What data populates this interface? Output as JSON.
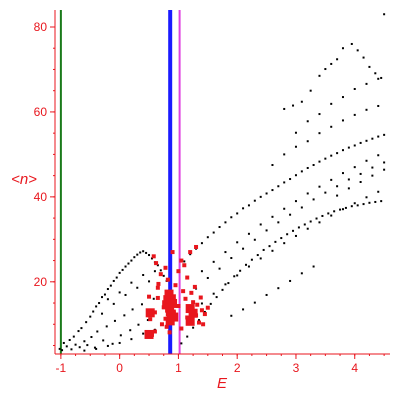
{
  "chart_data": {
    "type": "scatter",
    "title": "",
    "xlabel": "E",
    "ylabel": "<n>",
    "xlim": [
      -1.1,
      4.6
    ],
    "ylim": [
      3,
      84
    ],
    "xticks": [
      -1,
      0,
      1,
      2,
      3,
      4
    ],
    "xtick_labels": [
      "-1",
      "0",
      "1",
      "2",
      "3",
      "4"
    ],
    "yticks": [
      20,
      40,
      60,
      80
    ],
    "ytick_labels": [
      "20",
      "40",
      "60",
      "80"
    ],
    "grid": false,
    "axis_color": "#e8161d",
    "vertical_lines": [
      {
        "x": -1.0,
        "color": "#1a7a1a"
      },
      {
        "x": 0.86,
        "color": "#1a1aff"
      },
      {
        "x": 1.02,
        "color": "#e040e0"
      }
    ],
    "series": [
      {
        "color": "#000000",
        "marker_size": 1,
        "points": [
          [
            -1.02,
            4.2
          ],
          [
            -0.98,
            3.9
          ],
          [
            -0.95,
            5.6
          ],
          [
            -0.9,
            4.8
          ],
          [
            -0.85,
            6.3
          ],
          [
            -0.82,
            4.1
          ],
          [
            -0.78,
            7.1
          ],
          [
            -0.75,
            5.2
          ],
          [
            -0.7,
            8.4
          ],
          [
            -0.68,
            4.6
          ],
          [
            -0.65,
            9.1
          ],
          [
            -0.6,
            6.0
          ],
          [
            -0.57,
            10.5
          ],
          [
            -0.55,
            5.1
          ],
          [
            -0.5,
            11.8
          ],
          [
            -0.48,
            7.0
          ],
          [
            -0.45,
            13.0
          ],
          [
            -0.42,
            4.5
          ],
          [
            -0.4,
            14.2
          ],
          [
            -0.38,
            8.3
          ],
          [
            -0.35,
            15.0
          ],
          [
            -0.3,
            16.4
          ],
          [
            -0.28,
            6.2
          ],
          [
            -0.25,
            17.0
          ],
          [
            -0.22,
            9.5
          ],
          [
            -0.2,
            18.3
          ],
          [
            -0.15,
            19.1
          ],
          [
            -0.12,
            5.4
          ],
          [
            -0.1,
            20.2
          ],
          [
            -0.08,
            10.8
          ],
          [
            -0.05,
            21.0
          ],
          [
            0.0,
            22.1
          ],
          [
            0.02,
            7.4
          ],
          [
            0.05,
            22.8
          ],
          [
            0.08,
            12.1
          ],
          [
            0.1,
            23.6
          ],
          [
            0.15,
            24.3
          ],
          [
            0.18,
            8.6
          ],
          [
            0.2,
            25.0
          ],
          [
            0.22,
            13.5
          ],
          [
            0.25,
            25.8
          ],
          [
            0.3,
            26.4
          ],
          [
            0.32,
            9.9
          ],
          [
            0.35,
            26.9
          ],
          [
            0.38,
            14.7
          ],
          [
            0.4,
            27.2
          ],
          [
            0.45,
            26.8
          ],
          [
            0.48,
            11.0
          ],
          [
            0.5,
            26.3
          ],
          [
            0.55,
            25.5
          ],
          [
            0.58,
            16.0
          ],
          [
            0.6,
            24.6
          ],
          [
            0.65,
            23.9
          ],
          [
            0.7,
            22.7
          ],
          [
            0.75,
            21.4
          ],
          [
            0.8,
            20.2
          ],
          [
            -0.6,
            3.8
          ],
          [
            -0.4,
            4.2
          ],
          [
            -0.2,
            4.9
          ],
          [
            0.0,
            5.6
          ],
          [
            0.2,
            6.5
          ],
          [
            0.4,
            7.8
          ],
          [
            0.6,
            8.7
          ],
          [
            0.8,
            9.6
          ],
          [
            -0.3,
            12.5
          ],
          [
            -0.1,
            14.8
          ],
          [
            0.1,
            16.9
          ],
          [
            0.3,
            18.6
          ],
          [
            0.5,
            20.1
          ],
          [
            0.0,
            17.5
          ],
          [
            0.2,
            19.8
          ],
          [
            0.4,
            21.6
          ],
          [
            -0.2,
            15.9
          ],
          [
            0.6,
            22.5
          ],
          [
            1.05,
            5.5
          ],
          [
            1.1,
            24.8
          ],
          [
            1.15,
            7.1
          ],
          [
            1.2,
            26.5
          ],
          [
            1.25,
            9.2
          ],
          [
            1.3,
            27.8
          ],
          [
            1.35,
            11.0
          ],
          [
            1.4,
            29.1
          ],
          [
            1.45,
            12.9
          ],
          [
            1.5,
            30.5
          ],
          [
            1.55,
            14.8
          ],
          [
            1.6,
            31.6
          ],
          [
            1.65,
            16.4
          ],
          [
            1.7,
            32.9
          ],
          [
            1.75,
            18.1
          ],
          [
            1.8,
            34.0
          ],
          [
            1.85,
            19.7
          ],
          [
            1.9,
            35.2
          ],
          [
            1.95,
            21.3
          ],
          [
            2.0,
            36.1
          ],
          [
            2.05,
            22.6
          ],
          [
            2.1,
            37.3
          ],
          [
            2.15,
            24.0
          ],
          [
            2.2,
            38.0
          ],
          [
            2.25,
            25.2
          ],
          [
            2.3,
            39.1
          ],
          [
            2.35,
            26.3
          ],
          [
            2.4,
            40.0
          ],
          [
            2.45,
            27.5
          ],
          [
            2.5,
            40.8
          ],
          [
            2.55,
            28.4
          ],
          [
            2.6,
            41.6
          ],
          [
            2.65,
            29.4
          ],
          [
            2.7,
            42.5
          ],
          [
            2.75,
            30.3
          ],
          [
            2.8,
            43.4
          ],
          [
            2.85,
            31.2
          ],
          [
            2.9,
            44.2
          ],
          [
            2.95,
            32.0
          ],
          [
            3.0,
            45.1
          ],
          [
            3.05,
            32.8
          ],
          [
            3.1,
            46.0
          ],
          [
            3.15,
            33.5
          ],
          [
            3.2,
            46.8
          ],
          [
            3.25,
            34.2
          ],
          [
            3.3,
            47.5
          ],
          [
            3.35,
            34.9
          ],
          [
            3.4,
            48.3
          ],
          [
            3.45,
            35.5
          ],
          [
            3.5,
            49.0
          ],
          [
            3.55,
            36.1
          ],
          [
            3.6,
            49.7
          ],
          [
            3.65,
            36.6
          ],
          [
            3.7,
            50.3
          ],
          [
            3.75,
            37.0
          ],
          [
            3.8,
            51.0
          ],
          [
            3.85,
            37.4
          ],
          [
            3.9,
            51.6
          ],
          [
            3.95,
            37.8
          ],
          [
            4.0,
            52.1
          ],
          [
            4.05,
            38.0
          ],
          [
            4.1,
            52.7
          ],
          [
            4.15,
            38.3
          ],
          [
            4.2,
            53.2
          ],
          [
            4.25,
            38.6
          ],
          [
            4.3,
            53.7
          ],
          [
            4.35,
            38.8
          ],
          [
            4.4,
            54.2
          ],
          [
            4.45,
            39.0
          ],
          [
            4.5,
            54.6
          ],
          [
            1.3,
            18.4
          ],
          [
            1.5,
            20.9
          ],
          [
            1.7,
            23.1
          ],
          [
            1.9,
            25.6
          ],
          [
            2.1,
            27.8
          ],
          [
            2.3,
            29.9
          ],
          [
            2.5,
            32.1
          ],
          [
            2.7,
            34.0
          ],
          [
            2.9,
            35.8
          ],
          [
            3.1,
            37.5
          ],
          [
            3.3,
            39.4
          ],
          [
            3.5,
            41.0
          ],
          [
            3.7,
            42.5
          ],
          [
            3.9,
            44.1
          ],
          [
            4.1,
            45.4
          ],
          [
            4.3,
            46.9
          ],
          [
            4.5,
            48.1
          ],
          [
            1.4,
            22.5
          ],
          [
            1.6,
            24.7
          ],
          [
            1.8,
            27.0
          ],
          [
            2.0,
            29.3
          ],
          [
            2.2,
            31.3
          ],
          [
            2.4,
            33.5
          ],
          [
            2.6,
            35.3
          ],
          [
            2.8,
            37.2
          ],
          [
            3.0,
            39.0
          ],
          [
            3.2,
            40.8
          ],
          [
            3.4,
            42.4
          ],
          [
            3.6,
            44.0
          ],
          [
            3.8,
            45.6
          ],
          [
            4.0,
            47.0
          ],
          [
            4.2,
            48.5
          ],
          [
            4.4,
            49.8
          ],
          [
            1.2,
            12.5
          ],
          [
            1.4,
            14.9
          ],
          [
            1.6,
            17.2
          ],
          [
            1.8,
            19.4
          ],
          [
            2.0,
            21.5
          ],
          [
            2.2,
            23.6
          ],
          [
            2.4,
            25.5
          ],
          [
            2.6,
            27.3
          ],
          [
            2.8,
            29.1
          ],
          [
            3.0,
            30.8
          ],
          [
            3.2,
            32.5
          ],
          [
            3.4,
            34.0
          ],
          [
            3.6,
            35.6
          ],
          [
            3.8,
            37.1
          ],
          [
            4.0,
            38.5
          ],
          [
            4.2,
            39.9
          ],
          [
            4.4,
            41.2
          ],
          [
            1.9,
            12.0
          ],
          [
            2.1,
            13.5
          ],
          [
            2.3,
            15.1
          ],
          [
            2.5,
            16.9
          ],
          [
            2.7,
            18.5
          ],
          [
            2.9,
            20.2
          ],
          [
            3.1,
            22.0
          ],
          [
            3.3,
            23.6
          ],
          [
            2.8,
            60.7
          ],
          [
            2.95,
            61.5
          ],
          [
            3.1,
            62.4
          ],
          [
            3.25,
            65.0
          ],
          [
            3.4,
            68.5
          ],
          [
            3.5,
            70.1
          ],
          [
            3.6,
            71.3
          ],
          [
            3.7,
            72.4
          ],
          [
            3.8,
            75.0
          ],
          [
            3.95,
            76.0
          ],
          [
            4.05,
            74.5
          ],
          [
            4.15,
            72.8
          ],
          [
            4.25,
            70.6
          ],
          [
            4.35,
            69.1
          ],
          [
            4.45,
            68.0
          ],
          [
            4.5,
            83.0
          ],
          [
            3.0,
            55.1
          ],
          [
            3.2,
            57.8
          ],
          [
            3.4,
            59.5
          ],
          [
            3.6,
            61.9
          ],
          [
            3.8,
            63.5
          ],
          [
            4.0,
            65.4
          ],
          [
            4.2,
            66.6
          ],
          [
            4.4,
            67.8
          ],
          [
            2.6,
            47.5
          ],
          [
            2.8,
            50.0
          ],
          [
            3.0,
            51.8
          ],
          [
            3.2,
            53.1
          ],
          [
            3.4,
            55.0
          ],
          [
            3.6,
            56.5
          ],
          [
            3.8,
            58.0
          ],
          [
            4.0,
            59.3
          ],
          [
            4.2,
            60.5
          ],
          [
            4.4,
            61.4
          ],
          [
            3.7,
            40.3
          ],
          [
            3.9,
            42.0
          ],
          [
            4.1,
            43.5
          ],
          [
            4.3,
            45.0
          ],
          [
            4.5,
            46.4
          ]
        ]
      },
      {
        "color": "#e8161d",
        "marker_size": 2,
        "points": [
          [
            0.55,
            7.5
          ],
          [
            0.6,
            8.3
          ],
          [
            0.6,
            12.8
          ],
          [
            0.65,
            16.2
          ],
          [
            0.65,
            18.6
          ],
          [
            0.7,
            21.8
          ],
          [
            0.72,
            10.0
          ],
          [
            0.75,
            14.0
          ],
          [
            0.78,
            23.3
          ],
          [
            0.78,
            11.3
          ],
          [
            0.8,
            9.4
          ],
          [
            0.82,
            12.4
          ],
          [
            0.82,
            20.5
          ],
          [
            0.85,
            8.1
          ],
          [
            0.9,
            15.1
          ],
          [
            0.92,
            13.0
          ],
          [
            0.95,
            11.8
          ],
          [
            1.0,
            14.3
          ],
          [
            1.0,
            22.5
          ],
          [
            1.05,
            9.0
          ],
          [
            1.08,
            17.8
          ],
          [
            1.1,
            23.9
          ],
          [
            1.12,
            16.0
          ],
          [
            1.15,
            11.6
          ],
          [
            1.2,
            13.4
          ],
          [
            1.22,
            17.4
          ],
          [
            1.25,
            15.2
          ],
          [
            1.3,
            12.1
          ],
          [
            1.32,
            14.6
          ],
          [
            1.35,
            10.4
          ],
          [
            1.38,
            16.3
          ],
          [
            1.4,
            13.3
          ],
          [
            1.42,
            10.0
          ],
          [
            1.45,
            12.4
          ],
          [
            1.5,
            13.9
          ],
          [
            0.5,
            16.5
          ],
          [
            0.52,
            11.2
          ],
          [
            0.58,
            26.0
          ],
          [
            0.62,
            24.4
          ],
          [
            0.66,
            19.5
          ],
          [
            0.9,
            27.0
          ],
          [
            1.2,
            27.0
          ],
          [
            1.05,
            25.0
          ],
          [
            1.3,
            28.2
          ],
          [
            0.95,
            19.2
          ],
          [
            1.15,
            21.0
          ],
          [
            1.28,
            18.8
          ]
        ]
      },
      {
        "color": "#e8161d",
        "marker_size": 4,
        "points": [
          [
            0.5,
            7.6
          ],
          [
            0.52,
            12.7
          ],
          [
            0.8,
            14.6
          ],
          [
            0.82,
            15.8
          ],
          [
            0.85,
            13.8
          ],
          [
            0.88,
            16.0
          ],
          [
            0.88,
            12.2
          ],
          [
            0.86,
            10.8
          ],
          [
            0.9,
            14.9
          ],
          [
            0.92,
            11.7
          ],
          [
            0.84,
            17.1
          ],
          [
            1.2,
            10.7
          ],
          [
            1.25,
            12.6
          ],
          [
            1.2,
            13.7
          ]
        ]
      }
    ]
  }
}
